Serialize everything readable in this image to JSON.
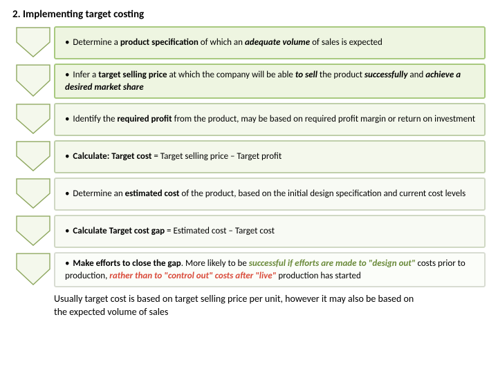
{
  "title": "2. Implementing target costing",
  "chevron_fill": "#f4f8ec",
  "chevron_stroke": "#8fa860",
  "steps": [
    {
      "html": "Determine a <b>product specification</b> of which an <span class='bi'>adequate volume</span> of sales is expected",
      "border_color": "#a8c97f",
      "bg_color": "#eef5e1",
      "accent_color": "#6a8a3a"
    },
    {
      "html": "Infer a <b>target selling price</b> at which the company will be able <span class='bi'>to sell</span> the product <span class='bi'>successfully</span> and <span class='bi'>achieve a desired market share</span>",
      "border_color": "#a8c97f",
      "bg_color": "#eef5e1",
      "accent_color": "#6a8a3a"
    },
    {
      "html": "Identify the <b>required profit</b> from the product, may be based on required profit margin or return on investment",
      "border_color": "#bfcfaa",
      "bg_color": "#f4f8ec",
      "accent_color": "#6a8a3a"
    },
    {
      "html": "<b>Calculate: Target cost</b> = Target selling price – Target profit",
      "border_color": "#bfcfaa",
      "bg_color": "#f4f8ec",
      "accent_color": "#6a8a3a"
    },
    {
      "html": "Determine an <b>estimated cost</b> of the product, based on the initial design specification and current cost levels",
      "border_color": "#d0d8c4",
      "bg_color": "#f8faf4",
      "accent_color": "#6a8a3a"
    },
    {
      "html": "<b>Calculate Target cost gap</b> = Estimated cost – Target cost",
      "border_color": "#d0d8c4",
      "bg_color": "#f8faf4",
      "accent_color": "#6a8a3a"
    },
    {
      "html": "<b>Make efforts to close the gap</b>. More likely to be <span class='accent' style='color:#6a8a3a'>successful if efforts are made to \"design out\"</span> costs prior to production, <span class='accent' style='color:#d94a3a'>rather than to \"control out\" costs after \"live\"</span> production has started",
      "border_color": "#d8dcd2",
      "bg_color": "#fbfdf9",
      "accent_color": "#6a8a3a"
    }
  ],
  "footer": "Usually target cost is based on target selling price per unit, however it may also be based on the expected volume of sales"
}
